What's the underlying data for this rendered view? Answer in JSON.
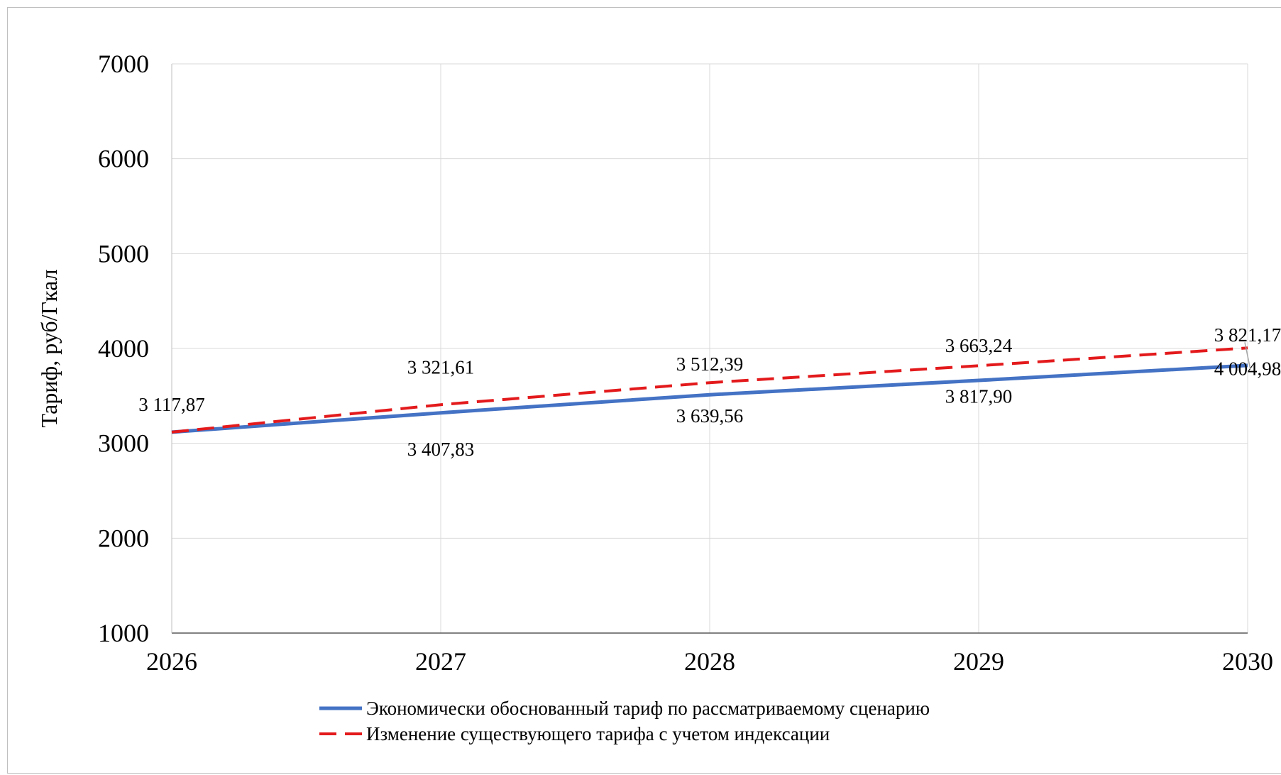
{
  "chart_data": {
    "type": "line",
    "title": "",
    "xlabel": "",
    "ylabel": "Тариф, руб/Гкал",
    "x": [
      2026,
      2027,
      2028,
      2029,
      2030
    ],
    "x_tick_labels": [
      "2026",
      "2027",
      "2028",
      "2029",
      "2030"
    ],
    "ylim": [
      1000,
      7000
    ],
    "y_ticks": [
      1000,
      2000,
      3000,
      4000,
      5000,
      6000,
      7000
    ],
    "y_tick_labels": [
      "1000",
      "2000",
      "3000",
      "4000",
      "5000",
      "6000",
      "7000"
    ],
    "grid": true,
    "legend_position": "bottom",
    "series": [
      {
        "name": "Экономически обоснованный тариф по рассматриваемому сценарию",
        "color": "#4472c4",
        "style": "solid",
        "values": [
          3117.87,
          3321.61,
          3512.39,
          3663.24,
          3821.17
        ],
        "labels": [
          "3 117,87",
          "3 321,61",
          "3 512,39",
          "3 663,24",
          "3 821,17"
        ]
      },
      {
        "name": "Изменение существующего тарифа с учетом индексации",
        "color": "#e31a1c",
        "style": "dashed",
        "values": [
          3117.87,
          3407.83,
          3639.56,
          3817.9,
          4004.98
        ],
        "labels": [
          "3 117,87",
          "3 407,83",
          "3 639,56",
          "3 817,90",
          "4 004,98"
        ]
      }
    ]
  }
}
